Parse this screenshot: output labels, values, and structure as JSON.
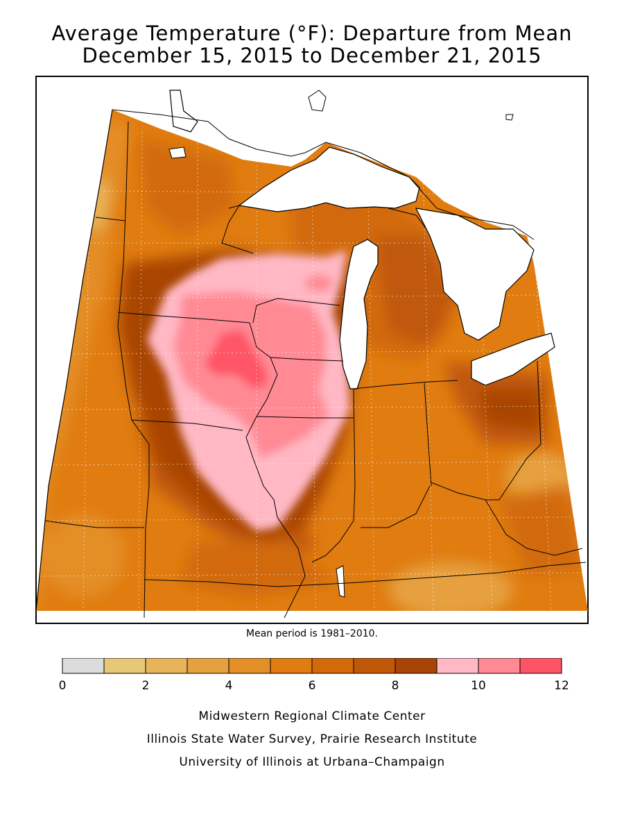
{
  "title": {
    "line1": "Average Temperature (°F): Departure from Mean",
    "line2": "December 15, 2015 to December 21, 2015"
  },
  "note": "Mean period is 1981–2010.",
  "legend": {
    "bins": [
      {
        "from": 0,
        "to": 1,
        "color": "#dcdcdc"
      },
      {
        "from": 1,
        "to": 2,
        "color": "#e6c878"
      },
      {
        "from": 2,
        "to": 3,
        "color": "#e8b45a"
      },
      {
        "from": 3,
        "to": 4,
        "color": "#e6a040"
      },
      {
        "from": 4,
        "to": 5,
        "color": "#e48e28"
      },
      {
        "from": 5,
        "to": 6,
        "color": "#e07c10"
      },
      {
        "from": 6,
        "to": 7,
        "color": "#d26a0a"
      },
      {
        "from": 7,
        "to": 8,
        "color": "#c05808"
      },
      {
        "from": 8,
        "to": 9,
        "color": "#a84406"
      },
      {
        "from": 9,
        "to": 10,
        "color": "#ffb8c4"
      },
      {
        "from": 10,
        "to": 11,
        "color": "#ff8a94"
      },
      {
        "from": 11,
        "to": 12,
        "color": "#ff5466"
      }
    ],
    "tick_labels": [
      "0",
      "2",
      "4",
      "6",
      "8",
      "10",
      "12"
    ]
  },
  "credits": {
    "line1": "Midwestern Regional Climate Center",
    "line2": "Illinois State Water Survey, Prairie Research Institute",
    "line3": "University of Illinois at Urbana–Champaign"
  },
  "colors": {
    "base": "#e07c10",
    "lake": "#ffffff",
    "border": "#000000"
  }
}
